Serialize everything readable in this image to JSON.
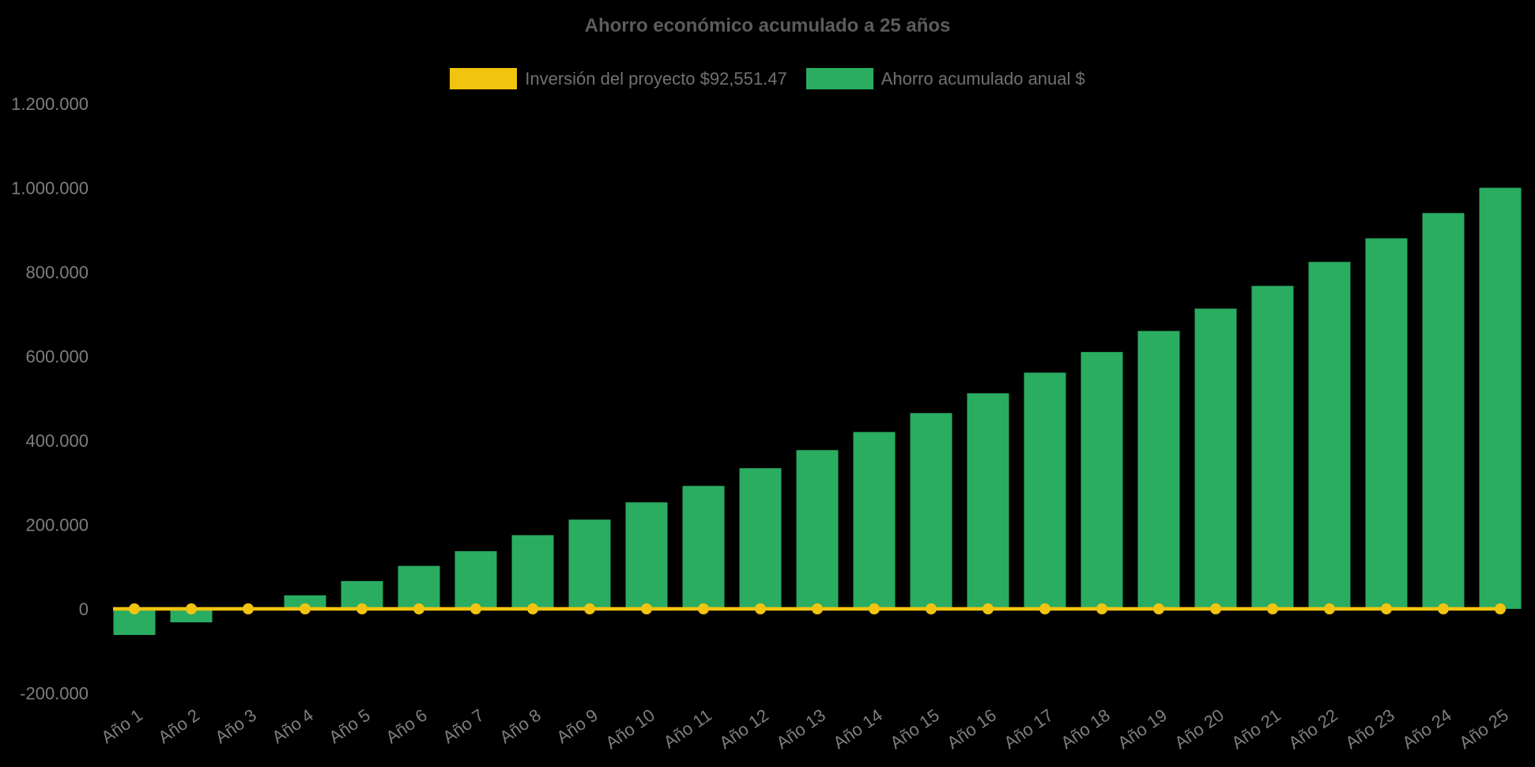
{
  "title": "Ahorro económico acumulado a 25 años",
  "legend": {
    "items": [
      {
        "label": "Inversión del proyecto $92,551.47",
        "color": "#F1C40F"
      },
      {
        "label": "Ahorro acumulado anual $",
        "color": "#2AAC61"
      }
    ]
  },
  "chart_data": {
    "type": "bar",
    "title": "Ahorro económico acumulado a 25 años",
    "categories": [
      "Año 1",
      "Año 2",
      "Año 3",
      "Año 4",
      "Año 5",
      "Año 6",
      "Año 7",
      "Año 8",
      "Año 9",
      "Año 10",
      "Año 11",
      "Año 12",
      "Año 13",
      "Año 14",
      "Año 15",
      "Año 16",
      "Año 17",
      "Año 18",
      "Año 19",
      "Año 20",
      "Año 21",
      "Año 22",
      "Año 23",
      "Año 24",
      "Año 25"
    ],
    "series": [
      {
        "name": "Ahorro acumulado anual $",
        "type": "bar",
        "color": "#2AAC61",
        "values": [
          -62000,
          -32000,
          -2000,
          32000,
          66000,
          102000,
          137000,
          175000,
          212000,
          253000,
          292000,
          334000,
          377000,
          420000,
          465000,
          512000,
          561000,
          610000,
          660000,
          713000,
          767000,
          824000,
          880000,
          940000,
          1000000
        ]
      },
      {
        "name": "Inversión del proyecto $92,551.47",
        "type": "line",
        "color": "#F1C40F",
        "values": [
          0,
          0,
          0,
          0,
          0,
          0,
          0,
          0,
          0,
          0,
          0,
          0,
          0,
          0,
          0,
          0,
          0,
          0,
          0,
          0,
          0,
          0,
          0,
          0,
          0
        ]
      }
    ],
    "ylim": [
      -200000,
      1200000
    ],
    "yticks": {
      "values": [
        1200000,
        1000000,
        800000,
        600000,
        400000,
        200000,
        0,
        -200000
      ],
      "labels": [
        "1.200.000",
        "1.000.000",
        "800.000",
        "600.000",
        "400.000",
        "200.000",
        "0",
        "-200.000"
      ]
    },
    "grid": false,
    "legend_position": "top",
    "xlabel": "",
    "ylabel": ""
  }
}
